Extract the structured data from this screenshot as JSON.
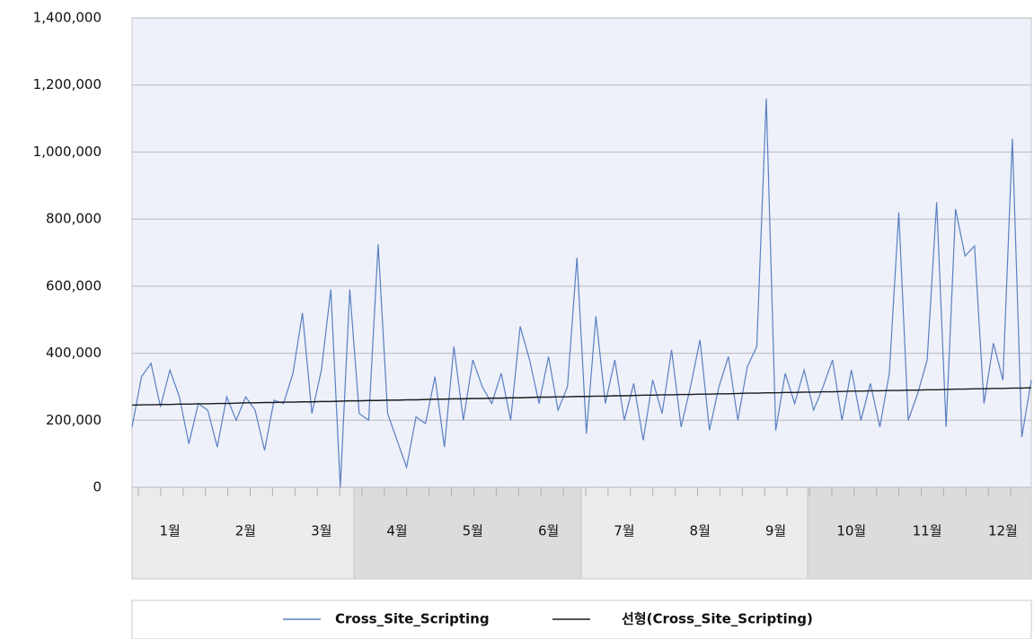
{
  "chart_data": {
    "type": "line",
    "categories": [
      null,
      null,
      null,
      null,
      "1월",
      null,
      null,
      null,
      null,
      null,
      null,
      null,
      "2월",
      null,
      null,
      null,
      null,
      null,
      null,
      null,
      "3월",
      null,
      null,
      null,
      null,
      null,
      null,
      null,
      "4월",
      null,
      null,
      null,
      null,
      null,
      null,
      null,
      "5월",
      null,
      null,
      null,
      null,
      null,
      null,
      null,
      "6월",
      null,
      null,
      null,
      null,
      null,
      null,
      null,
      "7월",
      null,
      null,
      null,
      null,
      null,
      null,
      null,
      "8월",
      null,
      null,
      null,
      null,
      null,
      null,
      null,
      "9월",
      null,
      null,
      null,
      null,
      null,
      null,
      null,
      "10월",
      null,
      null,
      null,
      null,
      null,
      null,
      null,
      "11월",
      null,
      null,
      null,
      null,
      null,
      null,
      null,
      "12월",
      null,
      null,
      null
    ],
    "series": [
      {
        "name": "Cross_Site_Scripting",
        "color": "#5a7fc2",
        "values": [
          180000,
          330000,
          370000,
          240000,
          350000,
          270000,
          130000,
          250000,
          230000,
          120000,
          270000,
          200000,
          270000,
          230000,
          110000,
          260000,
          250000,
          340000,
          520000,
          220000,
          350000,
          590000,
          0,
          590000,
          220000,
          200000,
          725000,
          220000,
          140000,
          60000,
          210000,
          190000,
          330000,
          120000,
          420000,
          200000,
          380000,
          300000,
          250000,
          340000,
          200000,
          480000,
          380000,
          250000,
          390000,
          230000,
          300000,
          685000,
          160000,
          510000,
          250000,
          380000,
          200000,
          310000,
          140000,
          320000,
          220000,
          410000,
          180000,
          300000,
          440000,
          170000,
          300000,
          390000,
          200000,
          360000,
          420000,
          1160000,
          170000,
          340000,
          250000,
          350000,
          230000,
          300000,
          380000,
          200000,
          350000,
          200000,
          310000,
          180000,
          340000,
          820000,
          200000,
          280000,
          380000,
          850000,
          180000,
          830000,
          690000,
          720000,
          250000,
          430000,
          320000,
          1040000,
          150000,
          320000
        ]
      },
      {
        "name": "선형(Cross_Site_Scripting)",
        "color": "#1a1a1a",
        "values": [
          245000,
          246000,
          246000,
          247000,
          247000,
          248000,
          248000,
          249000,
          249000,
          250000,
          250000,
          251000,
          252000,
          252000,
          253000,
          253000,
          254000,
          254000,
          255000,
          255000,
          256000,
          256000,
          257000,
          258000,
          258000,
          259000,
          259000,
          260000,
          260000,
          261000,
          261000,
          262000,
          263000,
          263000,
          264000,
          264000,
          265000,
          265000,
          266000,
          266000,
          267000,
          267000,
          268000,
          269000,
          269000,
          270000,
          270000,
          271000,
          271000,
          272000,
          272000,
          273000,
          273000,
          274000,
          275000,
          275000,
          276000,
          276000,
          277000,
          277000,
          278000,
          278000,
          279000,
          279000,
          280000,
          281000,
          281000,
          282000,
          282000,
          283000,
          283000,
          284000,
          284000,
          285000,
          285000,
          286000,
          287000,
          287000,
          288000,
          288000,
          289000,
          289000,
          290000,
          290000,
          291000,
          291000,
          292000,
          293000,
          293000,
          294000,
          294000,
          295000,
          295000,
          296000,
          296000,
          297000
        ]
      }
    ],
    "ylim": [
      0,
      1400000
    ],
    "yticks": [
      0,
      {
        "value": 200000,
        "label": "200,000"
      },
      {
        "value": 400000,
        "label": "400,000"
      },
      {
        "value": 600000,
        "label": "600,000"
      },
      {
        "value": 800000,
        "label": "800,000"
      },
      {
        "value": 1000000,
        "label": "1,000,000"
      },
      {
        "value": 1200000,
        "label": "1,200,000"
      },
      {
        "value": 1400000,
        "label": "1,400,000"
      }
    ],
    "grid": true,
    "legend": "bottom"
  }
}
